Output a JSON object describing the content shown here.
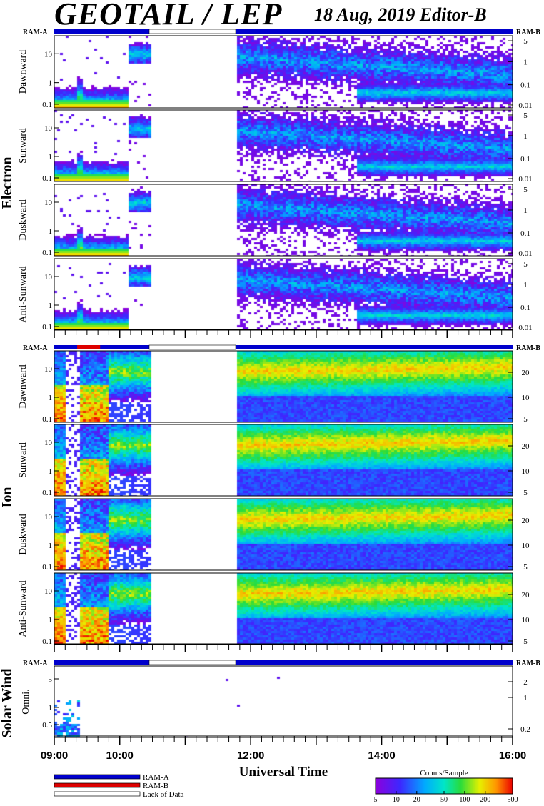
{
  "header": {
    "title": "GEOTAIL / LEP",
    "date_editor": "18 Aug, 2019   Editor-B"
  },
  "chart_data": {
    "type": "heatmap",
    "xlabel": "Universal Time",
    "x_ticks": [
      "09:00",
      "10:00",
      "12:00",
      "14:00",
      "16:00"
    ],
    "x_range_hours": [
      9,
      16
    ],
    "data_gap_hours": [
      10.45,
      11.77
    ],
    "groups": [
      {
        "label": "Electron",
        "ram_left": "RAM-A",
        "ram_right": "RAM-B",
        "panels": [
          {
            "label": "Dawnward",
            "left_ticks": [
              "10",
              "1",
              "0.1"
            ],
            "right_ticks": [
              "5",
              "1",
              "0.1",
              "0.01"
            ]
          },
          {
            "label": "Sunward",
            "left_ticks": [
              "10",
              "1",
              "0.1"
            ],
            "right_ticks": [
              "5",
              "1",
              "0.1",
              "0.01"
            ]
          },
          {
            "label": "Duskward",
            "left_ticks": [
              "10",
              "1",
              "0.1"
            ],
            "right_ticks": [
              "5",
              "1",
              "0.1",
              "0.01"
            ]
          },
          {
            "label": "Anti-Sunward",
            "left_ticks": [
              "10",
              "1",
              "0.1"
            ],
            "right_ticks": [
              "5",
              "1",
              "0.1",
              "0.01"
            ]
          }
        ]
      },
      {
        "label": "Ion",
        "ram_left": "RAM-A",
        "ram_right": "RAM-B",
        "panels": [
          {
            "label": "Dawnward",
            "left_ticks": [
              "10",
              "1",
              "0.1"
            ],
            "right_ticks": [
              "20",
              "10",
              "5"
            ]
          },
          {
            "label": "Sunward",
            "left_ticks": [
              "10",
              "1",
              "0.1"
            ],
            "right_ticks": [
              "20",
              "10",
              "5"
            ]
          },
          {
            "label": "Duskward",
            "left_ticks": [
              "10",
              "1",
              "0.1"
            ],
            "right_ticks": [
              "20",
              "10",
              "5"
            ]
          },
          {
            "label": "Anti-Sunward",
            "left_ticks": [
              "10",
              "1",
              "0.1"
            ],
            "right_ticks": [
              "20",
              "10",
              "5"
            ]
          }
        ]
      },
      {
        "label": "Solar Wind",
        "ram_left": "RAM-A",
        "ram_right": "RAM-B",
        "panels": [
          {
            "label": "Omni.",
            "left_ticks": [
              "5",
              "1",
              "0.5"
            ],
            "right_ticks": [
              "2",
              "1",
              "0.2"
            ]
          }
        ]
      }
    ],
    "legend": {
      "items": [
        {
          "label": "RAM-A",
          "color": "#0000cc"
        },
        {
          "label": "RAM-B",
          "color": "#dd0000"
        },
        {
          "label": "Lack of Data",
          "color": "#ffffff"
        }
      ]
    },
    "colorbar": {
      "title": "Counts/Sample",
      "ticks": [
        "5",
        "10",
        "20",
        "50",
        "100",
        "200",
        "500"
      ],
      "values": [
        5,
        10,
        20,
        50,
        100,
        200,
        500
      ],
      "range": [
        5,
        500
      ],
      "scale": "log"
    }
  }
}
